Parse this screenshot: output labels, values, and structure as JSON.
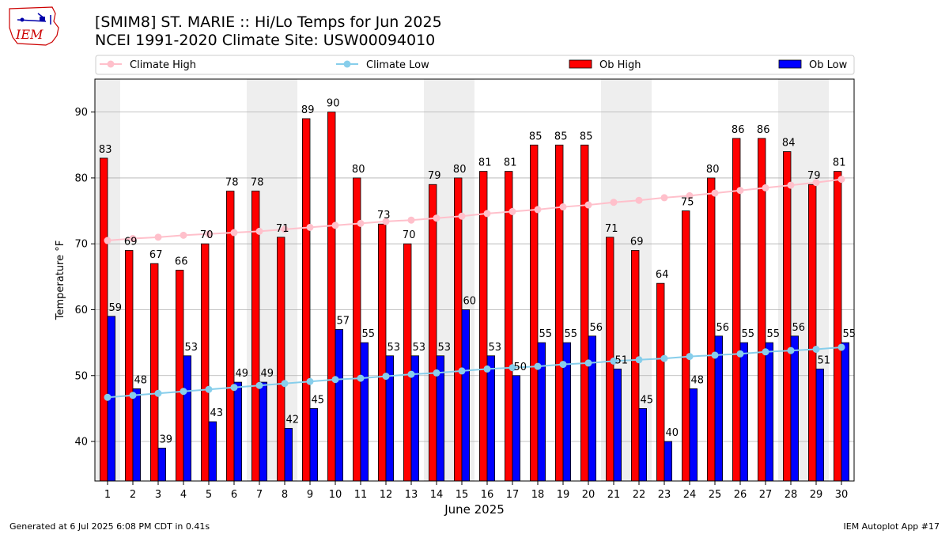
{
  "header": {
    "logo_text": "IEM",
    "title_line1": "[SMIM8] ST. MARIE :: Hi/Lo Temps for Jun 2025",
    "title_line2": "NCEI 1991-2020 Climate Site: USW00094010"
  },
  "footer": {
    "generated": "Generated at 6 Jul 2025 6:08 PM CDT in 0.41s",
    "app": "IEM Autoplot App #17"
  },
  "colors": {
    "ob_high": "#ff0000",
    "ob_low": "#0000ff",
    "climate_high": "#ffc0cb",
    "climate_low": "#87ceeb",
    "weekend_shade": "#eeeeee",
    "grid": "#b0b0b0"
  },
  "chart_data": {
    "type": "bar",
    "title": "[SMIM8] ST. MARIE :: Hi/Lo Temps for Jun 2025",
    "subtitle": "NCEI 1991-2020 Climate Site: USW00094010",
    "xlabel": "June 2025",
    "ylabel": "Temperature °F",
    "ylim": [
      34,
      95
    ],
    "yticks": [
      40,
      50,
      60,
      70,
      80,
      90
    ],
    "grid": true,
    "legend_position": "top",
    "categories": [
      "1",
      "2",
      "3",
      "4",
      "5",
      "6",
      "7",
      "8",
      "9",
      "10",
      "11",
      "12",
      "13",
      "14",
      "15",
      "16",
      "17",
      "18",
      "19",
      "20",
      "21",
      "22",
      "23",
      "24",
      "25",
      "26",
      "27",
      "28",
      "29",
      "30"
    ],
    "shaded_days": [
      1,
      7,
      8,
      14,
      15,
      21,
      22,
      28,
      29
    ],
    "series": [
      {
        "name": "Ob High",
        "kind": "bar",
        "values": [
          83,
          69,
          67,
          66,
          70,
          78,
          78,
          71,
          89,
          90,
          80,
          73,
          70,
          79,
          80,
          81,
          81,
          85,
          85,
          85,
          71,
          69,
          64,
          75,
          80,
          86,
          86,
          84,
          79,
          81
        ]
      },
      {
        "name": "Ob Low",
        "kind": "bar",
        "values": [
          59,
          48,
          39,
          53,
          43,
          49,
          49,
          42,
          45,
          57,
          55,
          53,
          53,
          53,
          60,
          53,
          50,
          55,
          55,
          56,
          51,
          45,
          40,
          48,
          56,
          55,
          55,
          56,
          51,
          55
        ]
      },
      {
        "name": "Climate High",
        "kind": "line",
        "values": [
          70.5,
          70.8,
          71.0,
          71.3,
          71.5,
          71.7,
          71.9,
          72.2,
          72.5,
          72.8,
          73.1,
          73.4,
          73.6,
          73.9,
          74.2,
          74.6,
          74.9,
          75.2,
          75.6,
          75.9,
          76.3,
          76.6,
          77.0,
          77.3,
          77.7,
          78.1,
          78.5,
          78.9,
          79.3,
          79.8
        ]
      },
      {
        "name": "Climate Low",
        "kind": "line",
        "values": [
          46.7,
          47.0,
          47.3,
          47.6,
          47.9,
          48.2,
          48.5,
          48.8,
          49.1,
          49.4,
          49.6,
          49.9,
          50.2,
          50.4,
          50.7,
          51.0,
          51.2,
          51.4,
          51.7,
          51.9,
          52.2,
          52.4,
          52.6,
          52.9,
          53.1,
          53.3,
          53.6,
          53.8,
          54.0,
          54.3
        ]
      }
    ]
  }
}
